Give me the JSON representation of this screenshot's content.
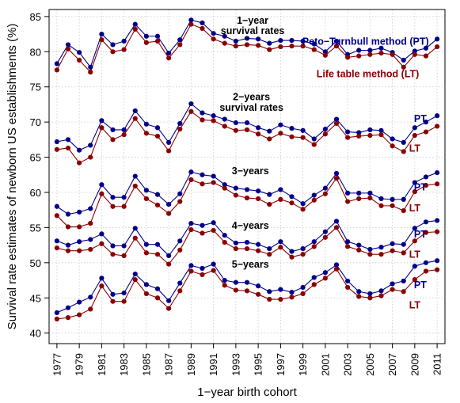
{
  "chart_data": {
    "type": "line",
    "xlabel": "1−year birth cohort",
    "ylabel": "Survival rate estimates of newborn US establishments (%)",
    "x": [
      1977,
      1978,
      1979,
      1980,
      1981,
      1982,
      1983,
      1984,
      1985,
      1986,
      1987,
      1988,
      1989,
      1990,
      1991,
      1992,
      1993,
      1994,
      1995,
      1996,
      1997,
      1998,
      1999,
      2000,
      2001,
      2002,
      2003,
      2004,
      2005,
      2006,
      2007,
      2008,
      2009,
      2010,
      2011
    ],
    "xlim": [
      1976.3,
      2011.7
    ],
    "ylim": [
      38.5,
      86
    ],
    "yticks": [
      40,
      45,
      50,
      55,
      60,
      65,
      70,
      75,
      80,
      85
    ],
    "xtick_labels": [
      "1977",
      "1979",
      "1981",
      "1983",
      "1985",
      "1987",
      "1989",
      "1991",
      "1993",
      "1995",
      "1997",
      "1999",
      "2001",
      "2003",
      "2005",
      "2007",
      "2009",
      "2011"
    ],
    "grid": true,
    "colors": {
      "PT": "#00008b",
      "LT": "#8b0000"
    },
    "series": [
      {
        "name": "1-year PT",
        "method": "PT",
        "x_start": 1977,
        "values": [
          78.3,
          81.0,
          79.9,
          77.8,
          82.5,
          81.0,
          81.5,
          83.9,
          82.2,
          82.2,
          79.8,
          81.7,
          84.5,
          84.1,
          82.6,
          82.2,
          81.5,
          81.9,
          81.8,
          81.2,
          81.6,
          81.6,
          81.5,
          81.1,
          80.0,
          81.5,
          79.6,
          80.2,
          80.2,
          80.5,
          79.9,
          78.8,
          80.1,
          80.5,
          81.8
        ]
      },
      {
        "name": "1-year LT",
        "method": "LT",
        "x_start": 1977,
        "values": [
          77.4,
          80.4,
          78.8,
          77.1,
          81.7,
          80.0,
          80.3,
          83.2,
          81.3,
          81.5,
          79.1,
          81.0,
          83.9,
          83.3,
          81.8,
          81.2,
          80.8,
          81.0,
          80.9,
          80.3,
          80.7,
          80.8,
          80.8,
          80.3,
          79.5,
          80.8,
          79.2,
          79.4,
          79.6,
          79.8,
          79.6,
          77.8,
          79.6,
          79.4,
          80.7
        ]
      },
      {
        "name": "2-years PT",
        "method": "PT",
        "x_start": 1977,
        "values": [
          67.2,
          67.5,
          66.0,
          66.7,
          70.2,
          68.9,
          68.9,
          71.6,
          69.7,
          69.2,
          67.1,
          69.8,
          72.6,
          71.3,
          70.9,
          70.4,
          69.9,
          69.9,
          69.2,
          68.7,
          69.6,
          69.1,
          68.8,
          67.6,
          69.0,
          70.4,
          68.6,
          68.5,
          68.9,
          68.8,
          67.6,
          67.1,
          69.2,
          70.0,
          70.9
        ]
      },
      {
        "name": "2-years LT",
        "method": "LT",
        "x_start": 1977,
        "values": [
          66.1,
          66.3,
          64.2,
          65.0,
          69.2,
          67.5,
          68.2,
          70.5,
          68.4,
          68.0,
          65.9,
          69.0,
          71.5,
          70.3,
          70.2,
          69.4,
          68.8,
          68.9,
          68.3,
          67.6,
          68.4,
          67.9,
          67.8,
          66.8,
          68.3,
          69.8,
          67.8,
          68.0,
          68.1,
          68.2,
          66.6,
          65.8,
          68.1,
          68.6,
          69.4
        ]
      },
      {
        "name": "3-years PT",
        "method": "PT",
        "x_start": 1977,
        "values": [
          58.0,
          56.9,
          57.2,
          57.7,
          61.1,
          59.3,
          59.3,
          62.3,
          60.3,
          59.7,
          58.3,
          59.8,
          62.9,
          62.5,
          62.3,
          61.1,
          60.6,
          60.4,
          60.2,
          59.7,
          60.4,
          59.4,
          58.4,
          59.6,
          60.6,
          62.7,
          59.9,
          59.9,
          59.9,
          59.1,
          59.0,
          59.0,
          61.4,
          62.2,
          62.8
        ]
      },
      {
        "name": "3-years LT",
        "method": "LT",
        "x_start": 1977,
        "values": [
          56.7,
          55.1,
          55.1,
          55.6,
          59.8,
          58.0,
          58.0,
          60.9,
          59.1,
          58.2,
          57.0,
          58.7,
          61.8,
          61.2,
          61.4,
          60.6,
          59.6,
          59.2,
          59.1,
          58.3,
          59.0,
          58.5,
          57.6,
          58.9,
          59.8,
          62.0,
          58.7,
          59.1,
          59.2,
          58.1,
          58.1,
          57.4,
          60.1,
          61.0,
          61.2
        ]
      },
      {
        "name": "4-years PT",
        "method": "PT",
        "x_start": 1977,
        "values": [
          53.1,
          52.5,
          53.0,
          53.3,
          54.1,
          52.4,
          52.4,
          54.9,
          52.6,
          52.6,
          51.0,
          53.1,
          55.6,
          55.3,
          55.7,
          53.9,
          52.8,
          52.9,
          52.6,
          52.0,
          53.0,
          51.6,
          52.0,
          53.0,
          54.4,
          55.9,
          53.0,
          52.5,
          51.9,
          52.2,
          52.7,
          52.6,
          54.9,
          55.8,
          56.0
        ]
      },
      {
        "name": "4-years LT",
        "method": "LT",
        "x_start": 1977,
        "values": [
          52.1,
          51.7,
          51.7,
          51.9,
          52.7,
          51.2,
          51.0,
          53.5,
          51.4,
          51.2,
          49.8,
          51.8,
          54.7,
          54.2,
          54.6,
          52.9,
          52.0,
          52.0,
          51.7,
          51.2,
          52.2,
          50.8,
          51.2,
          52.3,
          53.6,
          55.0,
          52.3,
          51.8,
          51.2,
          51.2,
          51.7,
          51.4,
          53.1,
          54.3,
          54.4
        ]
      },
      {
        "name": "5-years PT",
        "method": "PT",
        "x_start": 1977,
        "values": [
          42.9,
          43.6,
          44.4,
          45.1,
          47.8,
          45.5,
          45.7,
          48.4,
          46.9,
          46.3,
          44.6,
          47.1,
          49.6,
          49.2,
          49.8,
          47.5,
          47.2,
          47.2,
          46.7,
          45.9,
          46.2,
          45.8,
          46.5,
          47.9,
          48.6,
          49.7,
          47.4,
          45.9,
          45.6,
          46.0,
          47.0,
          47.4,
          49.5,
          50.0,
          50.3
        ]
      },
      {
        "name": "5-years LT",
        "method": "LT",
        "x_start": 1977,
        "values": [
          42.0,
          42.2,
          42.6,
          43.4,
          46.7,
          44.5,
          44.5,
          47.6,
          45.6,
          45.0,
          43.5,
          46.0,
          48.8,
          48.3,
          48.9,
          46.8,
          46.1,
          46.0,
          45.5,
          44.8,
          44.8,
          45.1,
          45.6,
          46.9,
          47.8,
          49.1,
          46.5,
          45.2,
          45.0,
          45.3,
          46.2,
          45.9,
          47.6,
          48.8,
          49.0
        ]
      }
    ],
    "annotations": [
      {
        "id": "ann-1yr-line1",
        "text": "1−year",
        "x": 1994.5,
        "y": 84.0,
        "style": "black"
      },
      {
        "id": "ann-1yr-line2",
        "text": "survival rates",
        "x": 1994.5,
        "y": 82.5,
        "style": "black"
      },
      {
        "id": "ann-pt-method",
        "text": "Peto−Turnbull method (PT)",
        "x": 2004.6,
        "y": 81.0,
        "style": "blue"
      },
      {
        "id": "ann-lt-method",
        "text": "Life table method (LT)",
        "x": 2004.8,
        "y": 76.4,
        "style": "red"
      },
      {
        "id": "ann-2yr-line1",
        "text": "2−years",
        "x": 1994.4,
        "y": 73.1,
        "style": "black"
      },
      {
        "id": "ann-2yr-line2",
        "text": "survival rates",
        "x": 1994.4,
        "y": 71.6,
        "style": "black"
      },
      {
        "id": "ann-2yr-pt",
        "text": "PT",
        "x": 2009.5,
        "y": 70.0,
        "style": "blue"
      },
      {
        "id": "ann-2yr-lt",
        "text": "LT",
        "x": 2009.0,
        "y": 65.8,
        "style": "red"
      },
      {
        "id": "ann-3yr",
        "text": "3−years",
        "x": 1994.3,
        "y": 62.6,
        "style": "black"
      },
      {
        "id": "ann-3yr-pt",
        "text": "PT",
        "x": 2009.5,
        "y": 60.3,
        "style": "blue"
      },
      {
        "id": "ann-3yr-lt",
        "text": "LT",
        "x": 2009.0,
        "y": 57.3,
        "style": "red"
      },
      {
        "id": "ann-4yr",
        "text": "4−years",
        "x": 1994.3,
        "y": 54.8,
        "style": "black"
      },
      {
        "id": "ann-4yr-pt",
        "text": "PT",
        "x": 2009.5,
        "y": 53.6,
        "style": "blue"
      },
      {
        "id": "ann-4yr-lt",
        "text": "LT",
        "x": 2009.0,
        "y": 50.7,
        "style": "red"
      },
      {
        "id": "ann-5yr",
        "text": "5−years",
        "x": 1994.3,
        "y": 49.3,
        "style": "black"
      },
      {
        "id": "ann-5yr-pt",
        "text": "PT",
        "x": 2009.5,
        "y": 46.4,
        "style": "blue"
      },
      {
        "id": "ann-5yr-lt",
        "text": "LT",
        "x": 2009.0,
        "y": 43.5,
        "style": "red"
      }
    ]
  }
}
